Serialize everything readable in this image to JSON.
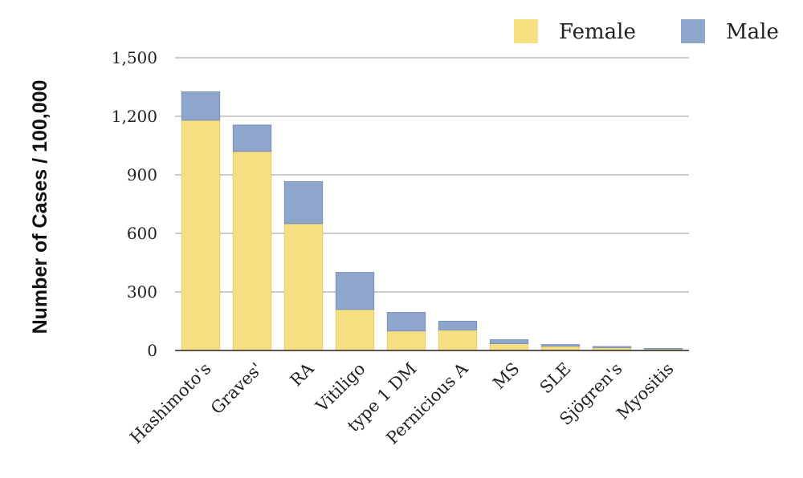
{
  "chart_data": {
    "type": "bar",
    "stacked": true,
    "title": "",
    "xlabel": "",
    "ylabel": "Number of Cases / 100,000",
    "ylim": [
      0,
      1500
    ],
    "yticks": [
      0,
      300,
      600,
      900,
      1200,
      1500
    ],
    "ytick_labels": [
      "0",
      "300",
      "600",
      "900",
      "1,200",
      "1,500"
    ],
    "grid": true,
    "legend_position": "top-right",
    "categories": [
      "Hashimoto's",
      "Graves'",
      "RA",
      "Vitiligo",
      "type 1 DM",
      "Pernicious A",
      "MS",
      "SLE",
      "Sjögren's",
      "Myositis"
    ],
    "series": [
      {
        "name": "Female",
        "color": "#f6df80",
        "values": [
          1180,
          1020,
          650,
          210,
          100,
          105,
          35,
          22,
          15,
          8
        ]
      },
      {
        "name": "Male",
        "color": "#8fa6cc",
        "values": [
          145,
          135,
          215,
          190,
          95,
          45,
          20,
          8,
          5,
          2
        ]
      }
    ]
  }
}
